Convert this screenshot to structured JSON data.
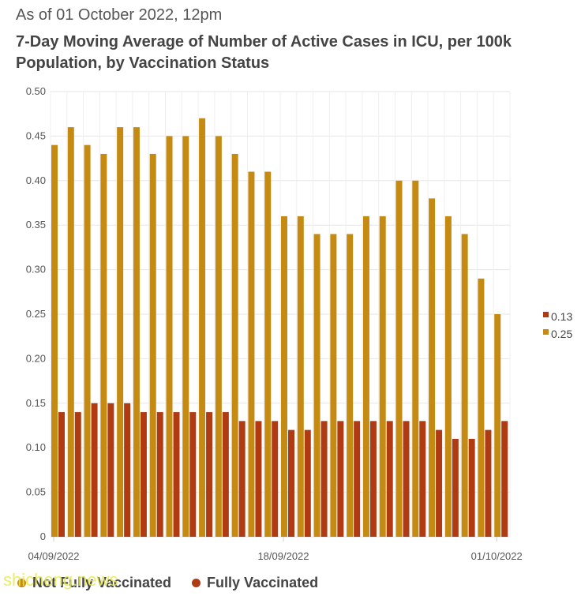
{
  "header": {
    "timestamp": "As of 01 October 2022, 12pm",
    "title": "7-Day Moving Average of Number of Active Cases in ICU, per 100k Population, by Vaccination Status"
  },
  "colors": {
    "unvaccinated": "#C48A12",
    "fully_vaccinated": "#B03A12",
    "grid": "#e6e6e6"
  },
  "legend_right": [
    {
      "label": "0.13",
      "color": "#B03A12"
    },
    {
      "label": "0.25",
      "color": "#C48A12"
    }
  ],
  "legend_bottom": [
    {
      "label": "Not Fully Vaccinated",
      "color": "#C48A12"
    },
    {
      "label": "Fully Vaccinated",
      "color": "#B03A12"
    }
  ],
  "watermark": "shicheng.news",
  "chart_data": {
    "type": "bar",
    "x_tick_labels": [
      "04/09/2022",
      "18/09/2022",
      "01/10/2022"
    ],
    "x_tick_positions": [
      0,
      14,
      27
    ],
    "y_ticks": [
      "0",
      "0.05",
      "0.10",
      "0.15",
      "0.20",
      "0.25",
      "0.30",
      "0.35",
      "0.40",
      "0.45",
      "0.50"
    ],
    "ylim": [
      0,
      0.5
    ],
    "grid": true,
    "legend_placement": "right",
    "series": [
      {
        "name": "Not Fully Vaccinated",
        "values": [
          0.44,
          0.46,
          0.44,
          0.43,
          0.46,
          0.46,
          0.43,
          0.45,
          0.45,
          0.47,
          0.45,
          0.43,
          0.41,
          0.41,
          0.36,
          0.36,
          0.34,
          0.34,
          0.34,
          0.36,
          0.36,
          0.4,
          0.4,
          0.38,
          0.36,
          0.34,
          0.29,
          0.25
        ]
      },
      {
        "name": "Fully Vaccinated",
        "values": [
          0.14,
          0.14,
          0.15,
          0.15,
          0.15,
          0.14,
          0.14,
          0.14,
          0.14,
          0.14,
          0.14,
          0.13,
          0.13,
          0.13,
          0.12,
          0.12,
          0.13,
          0.13,
          0.13,
          0.13,
          0.13,
          0.13,
          0.13,
          0.12,
          0.11,
          0.11,
          0.12,
          0.13
        ]
      }
    ]
  }
}
